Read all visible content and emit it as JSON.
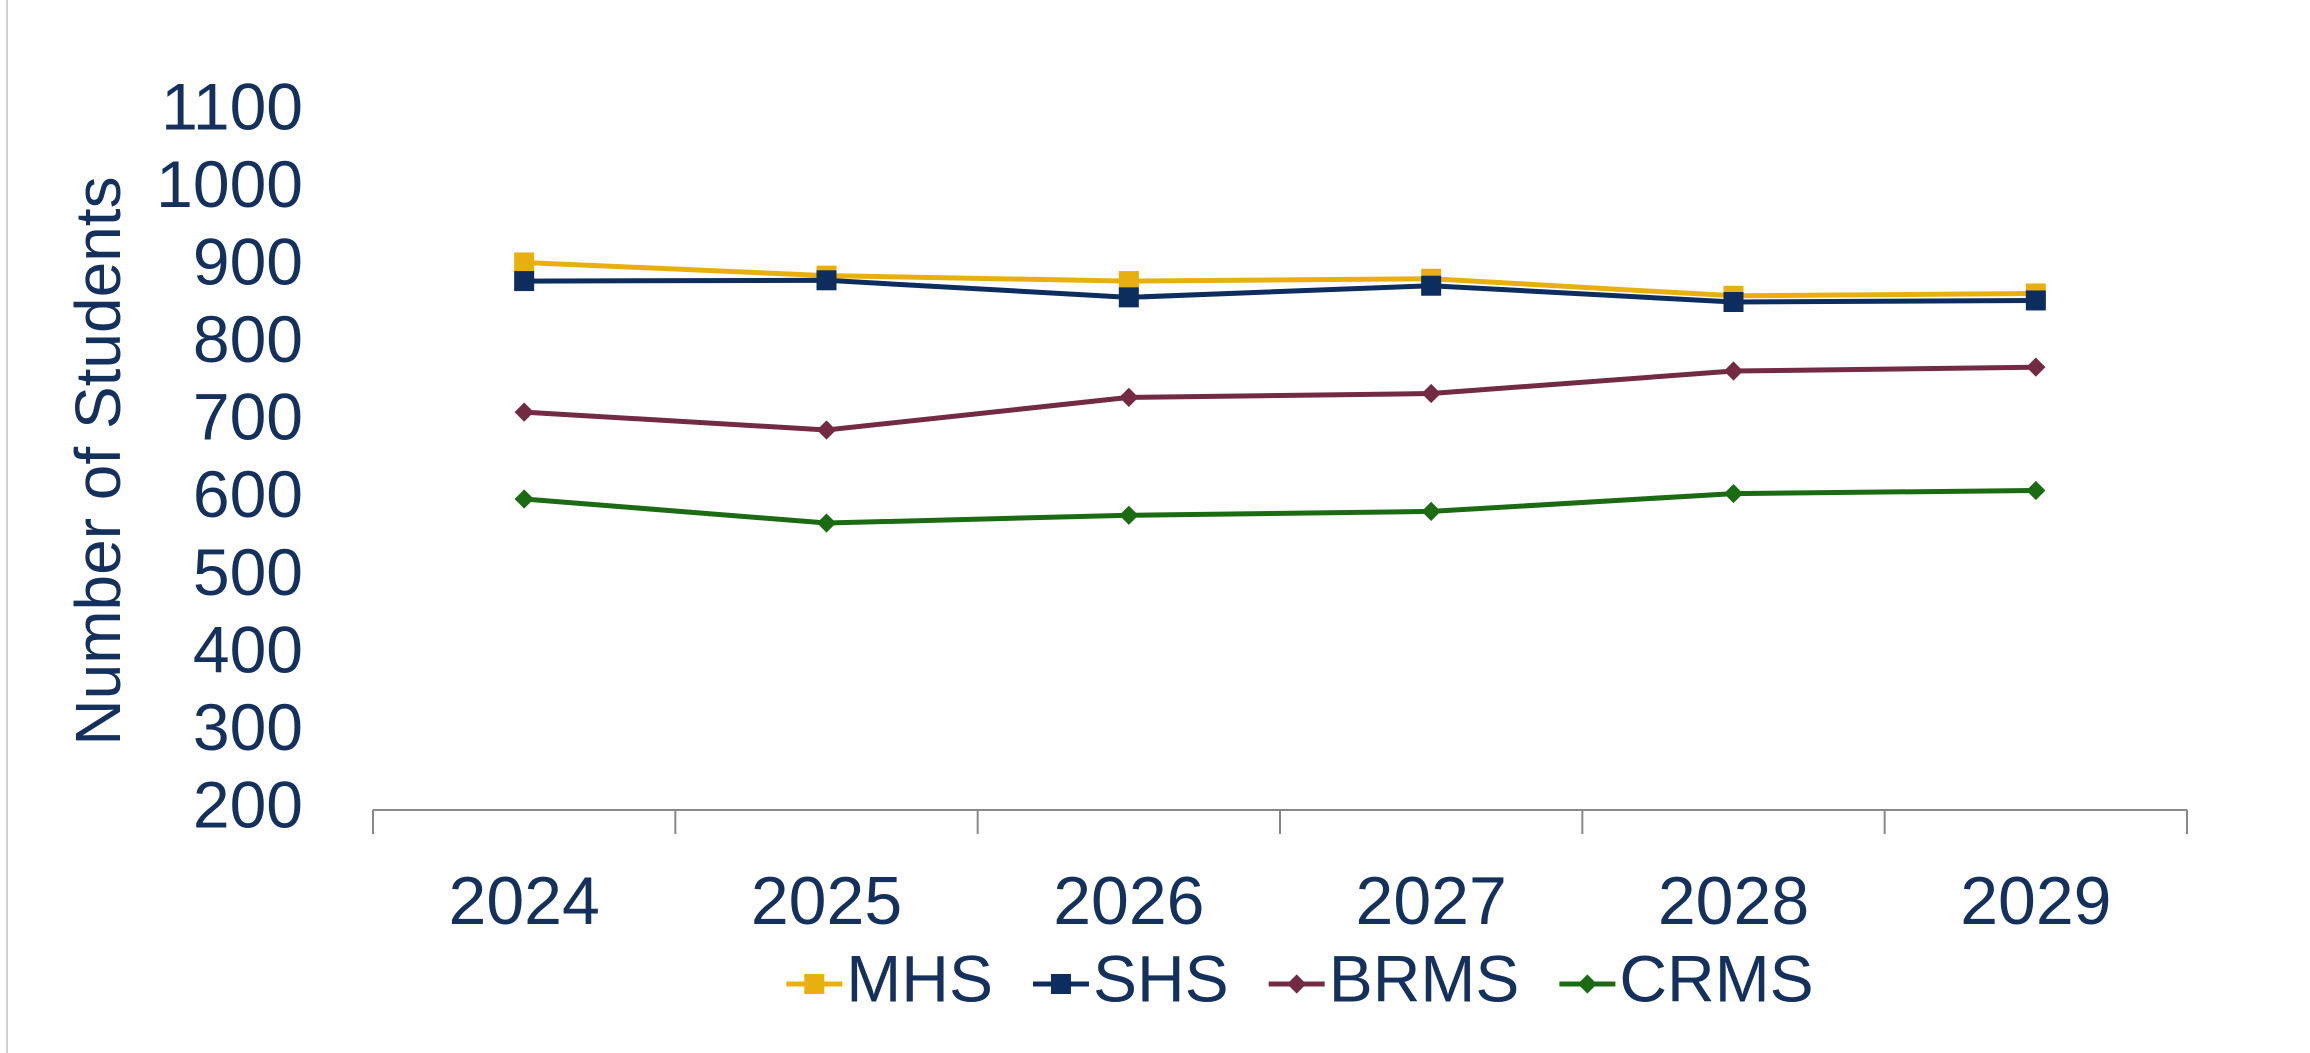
{
  "chart_data": {
    "type": "line",
    "y_label": "Number of Students",
    "categories": [
      "2024",
      "2025",
      "2026",
      "2027",
      "2028",
      "2029"
    ],
    "series": [
      {
        "name": "MHS",
        "color": "#e8b00f",
        "marker": "square",
        "values": [
          906,
          889,
          882,
          885,
          863,
          866
        ]
      },
      {
        "name": "SHS",
        "color": "#0d2d5e",
        "marker": "square",
        "values": [
          882,
          883,
          861,
          876,
          855,
          857
        ]
      },
      {
        "name": "BRMS",
        "color": "#722b43",
        "marker": "diamond",
        "values": [
          713,
          690,
          732,
          737,
          766,
          771
        ]
      },
      {
        "name": "CRMS",
        "color": "#1b6b12",
        "marker": "diamond",
        "values": [
          601,
          570,
          580,
          585,
          608,
          612
        ]
      }
    ],
    "ylim": [
      200,
      1100
    ],
    "yticks": [
      200,
      300,
      400,
      500,
      600,
      700,
      800,
      900,
      1000,
      1100
    ],
    "grid": false,
    "legend": "bottom"
  }
}
